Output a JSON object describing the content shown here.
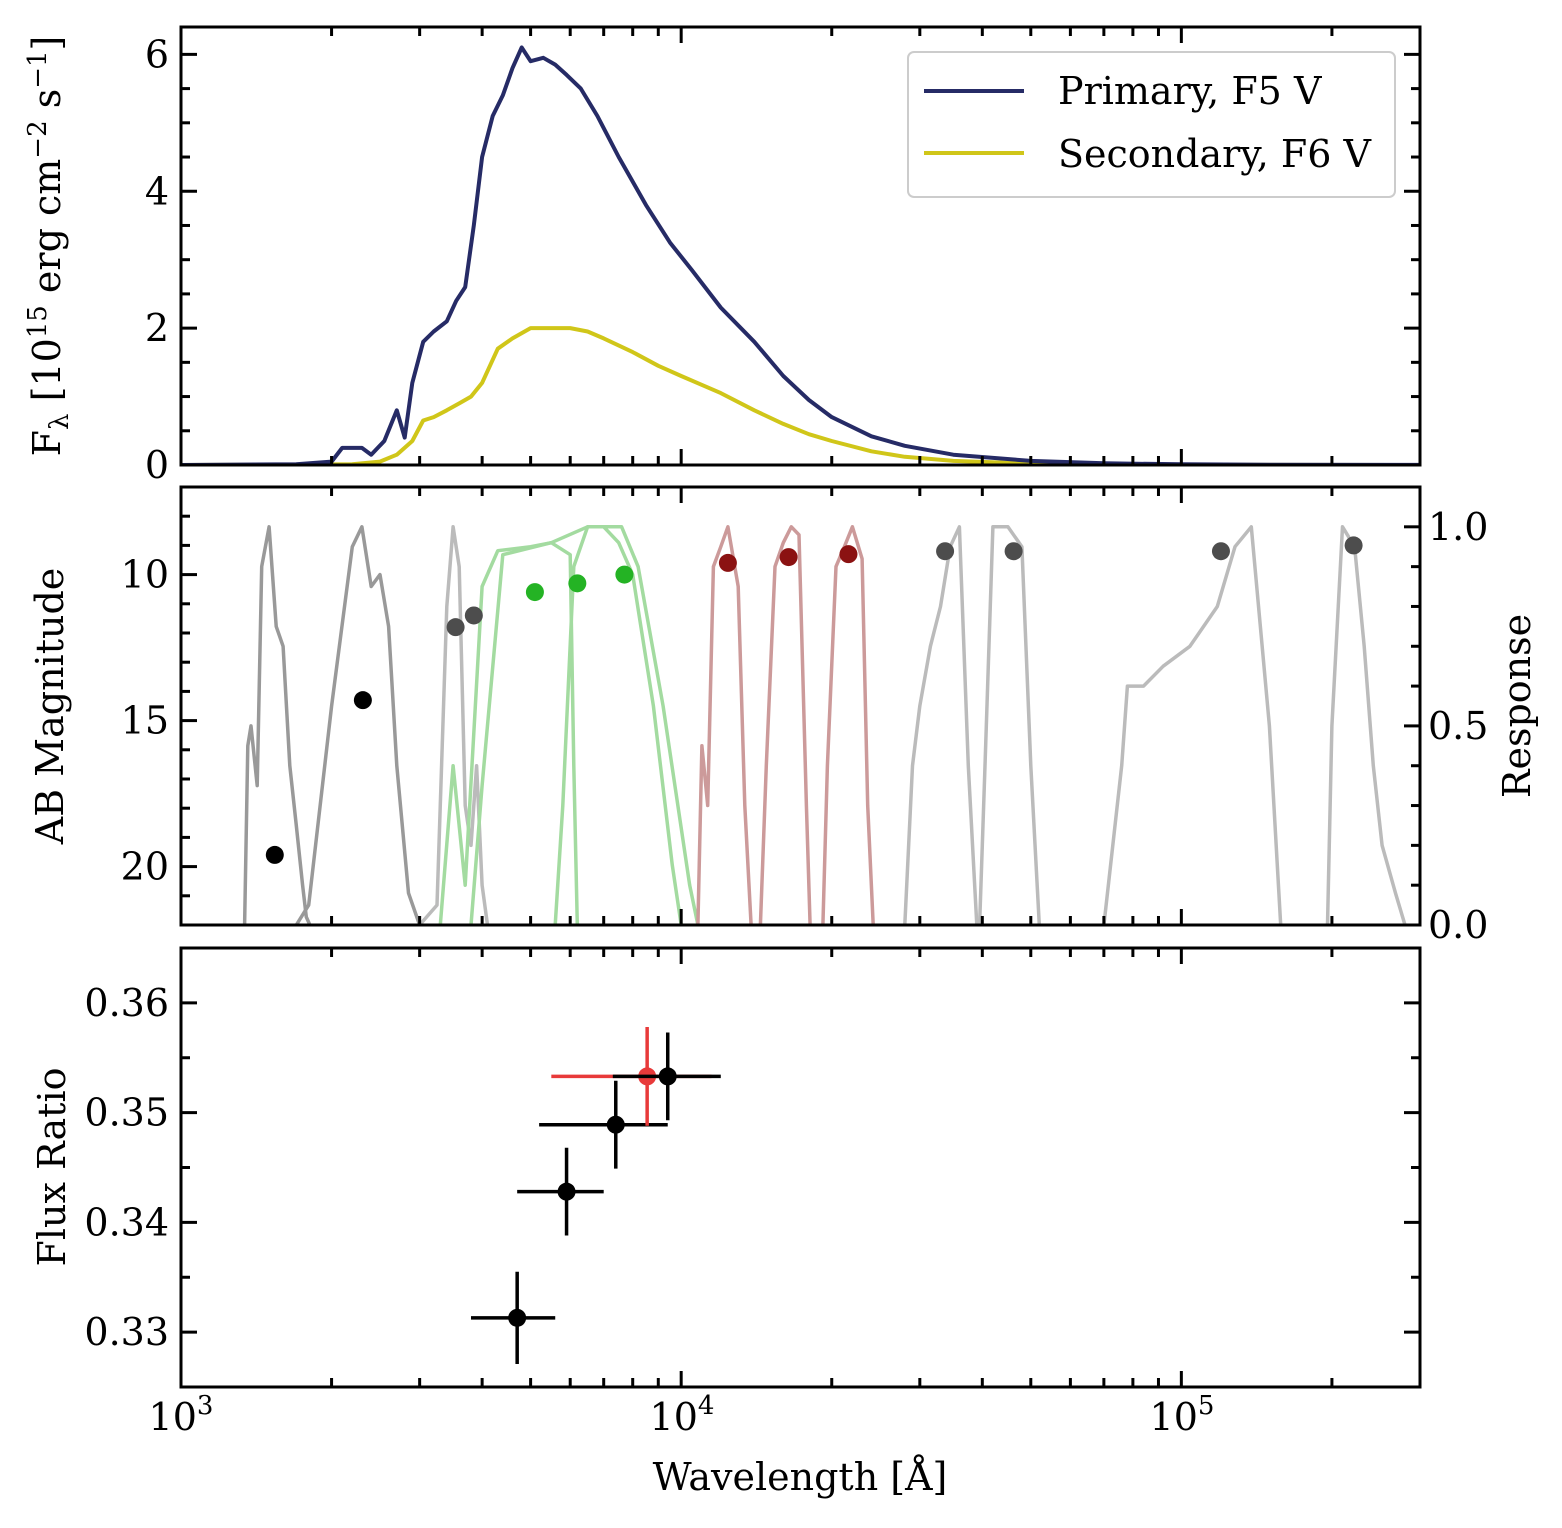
{
  "figure": {
    "xlabel": "Wavelength [Å]",
    "x_tick_labels": [
      "10^3",
      "10^4",
      "10^5"
    ]
  },
  "colors": {
    "primary": "#262b66",
    "secondary": "#d0c619",
    "uv_filter": "#999999",
    "optical_gray_filter": "#bbbbbb",
    "green_filter": "#a3dba0",
    "red_filter": "#cc9a9a",
    "ir_filter": "#bbbbbb",
    "black_point": "#000000",
    "gray_point": "#4d4d4d",
    "green_point": "#24b324",
    "darkred_point": "#8b1212",
    "red_point": "#e83a3a"
  },
  "chart_data": [
    {
      "panel": "top",
      "type": "line",
      "ylabel": "F_λ [10^15 erg cm^-2 s^-1]",
      "ylim": [
        0,
        6.4
      ],
      "y_ticks": [
        0,
        2,
        4,
        6
      ],
      "xscale": "log",
      "xlim": [
        1000,
        300000
      ],
      "legend": {
        "position": "top-right",
        "entries": [
          "Primary, F5 V",
          "Secondary, F6 V"
        ]
      },
      "series": [
        {
          "name": "Primary, F5 V",
          "x": [
            1000,
            1700,
            2000,
            2100,
            2300,
            2400,
            2550,
            2700,
            2800,
            2900,
            3050,
            3200,
            3400,
            3550,
            3700,
            3850,
            4000,
            4200,
            4400,
            4600,
            4800,
            5000,
            5300,
            5600,
            5900,
            6300,
            6800,
            7500,
            8500,
            9500,
            10500,
            12000,
            14000,
            16000,
            18000,
            20000,
            24000,
            28000,
            35000,
            50000,
            70000,
            100000,
            150000,
            300000
          ],
          "y": [
            0,
            0.01,
            0.05,
            0.25,
            0.25,
            0.15,
            0.35,
            0.8,
            0.4,
            1.2,
            1.8,
            1.95,
            2.1,
            2.4,
            2.6,
            3.5,
            4.5,
            5.1,
            5.4,
            5.8,
            6.1,
            5.9,
            5.95,
            5.85,
            5.7,
            5.5,
            5.1,
            4.5,
            3.8,
            3.25,
            2.85,
            2.3,
            1.8,
            1.3,
            0.95,
            0.7,
            0.42,
            0.28,
            0.15,
            0.06,
            0.025,
            0.01,
            0.004,
            0.001
          ]
        },
        {
          "name": "Secondary, F6 V",
          "x": [
            1000,
            2200,
            2500,
            2700,
            2900,
            3050,
            3200,
            3400,
            3600,
            3800,
            4000,
            4300,
            4600,
            5000,
            5500,
            6000,
            6500,
            7000,
            8000,
            9000,
            10000,
            12000,
            14000,
            16000,
            18000,
            20000,
            24000,
            28000,
            35000,
            50000,
            70000,
            100000,
            150000,
            300000
          ],
          "y": [
            0,
            0.01,
            0.05,
            0.15,
            0.35,
            0.65,
            0.7,
            0.8,
            0.9,
            1.0,
            1.2,
            1.7,
            1.85,
            2.0,
            2.0,
            2.0,
            1.95,
            1.85,
            1.65,
            1.45,
            1.3,
            1.05,
            0.8,
            0.6,
            0.45,
            0.35,
            0.2,
            0.12,
            0.06,
            0.02,
            0.008,
            0.003,
            0.001,
            0
          ]
        }
      ]
    },
    {
      "panel": "middle",
      "type": "scatter",
      "ylabel": "AB Magnitude",
      "ylim": [
        22,
        7
      ],
      "y_ticks": [
        10,
        15,
        20
      ],
      "secondary_ylabel": "Response",
      "secondary_ylim": [
        0,
        1.1
      ],
      "secondary_y_ticks": [
        "0.0",
        "0.5",
        "1.0"
      ],
      "xscale": "log",
      "xlim": [
        1000,
        300000
      ],
      "points": [
        {
          "x": 1540,
          "y": 19.6,
          "color": "black"
        },
        {
          "x": 2310,
          "y": 14.3,
          "color": "black"
        },
        {
          "x": 3540,
          "y": 11.8,
          "color": "gray"
        },
        {
          "x": 3850,
          "y": 11.4,
          "color": "gray"
        },
        {
          "x": 5100,
          "y": 10.6,
          "color": "green"
        },
        {
          "x": 6200,
          "y": 10.3,
          "color": "green"
        },
        {
          "x": 7700,
          "y": 10.0,
          "color": "green"
        },
        {
          "x": 12400,
          "y": 9.6,
          "color": "darkred"
        },
        {
          "x": 16400,
          "y": 9.4,
          "color": "darkred"
        },
        {
          "x": 21600,
          "y": 9.3,
          "color": "darkred"
        },
        {
          "x": 33700,
          "y": 9.2,
          "color": "gray"
        },
        {
          "x": 46200,
          "y": 9.2,
          "color": "gray"
        },
        {
          "x": 120000,
          "y": 9.2,
          "color": "gray"
        },
        {
          "x": 221000,
          "y": 9.0,
          "color": "gray"
        }
      ],
      "filter_curves": [
        {
          "group": "uv_filter",
          "x": [
            1340,
            1360,
            1380,
            1420,
            1450,
            1500,
            1550,
            1600,
            1650,
            1700,
            1750,
            1780,
            1810
          ],
          "y": [
            0,
            0.45,
            0.5,
            0.35,
            0.9,
            1.0,
            0.75,
            0.7,
            0.4,
            0.25,
            0.1,
            0.02,
            0
          ]
        },
        {
          "group": "uv_filter",
          "x": [
            1700,
            1800,
            2000,
            2200,
            2300,
            2400,
            2500,
            2600,
            2700,
            2850,
            3000
          ],
          "y": [
            0,
            0.05,
            0.55,
            0.95,
            1.0,
            0.85,
            0.88,
            0.75,
            0.4,
            0.08,
            0
          ]
        },
        {
          "group": "optical_gray_filter",
          "x": [
            3000,
            3250,
            3400,
            3500,
            3600,
            3700,
            3800,
            3900,
            4000,
            4100
          ],
          "y": [
            0,
            0.05,
            0.8,
            1.0,
            0.9,
            0.3,
            0.2,
            0.4,
            0.1,
            0
          ]
        },
        {
          "group": "green_filter",
          "x": [
            3300,
            3500,
            3700,
            4000,
            4300,
            5000,
            5500,
            6000,
            6100,
            6200
          ],
          "y": [
            0,
            0.4,
            0.1,
            0.85,
            0.94,
            0.95,
            0.96,
            0.93,
            0.4,
            0
          ]
        },
        {
          "group": "green_filter",
          "x": [
            5600,
            5800,
            6100,
            6500,
            7000,
            7500,
            8000,
            8800,
            9600,
            10000
          ],
          "y": [
            0,
            0.3,
            0.9,
            1.0,
            1.0,
            0.96,
            0.88,
            0.55,
            0.15,
            0
          ]
        },
        {
          "group": "green_filter",
          "x": [
            3800,
            4000,
            4400,
            5500,
            6500,
            7600,
            8200,
            9200,
            10400,
            10800
          ],
          "y": [
            0,
            0.35,
            0.93,
            0.96,
            1.0,
            1.0,
            0.9,
            0.55,
            0.1,
            0
          ]
        },
        {
          "group": "red_filter",
          "x": [
            10800,
            11000,
            11300,
            11600,
            12000,
            12400,
            13000,
            13400,
            13800
          ],
          "y": [
            0,
            0.45,
            0.3,
            0.9,
            0.95,
            1.0,
            0.85,
            0.3,
            0
          ]
        },
        {
          "group": "red_filter",
          "x": [
            14400,
            14800,
            15400,
            16000,
            16600,
            17200,
            17800,
            18100
          ],
          "y": [
            0,
            0.4,
            0.9,
            0.96,
            1.0,
            0.98,
            0.3,
            0
          ]
        },
        {
          "group": "red_filter",
          "x": [
            19200,
            19600,
            20400,
            21200,
            22000,
            23000,
            23600,
            24200
          ],
          "y": [
            0,
            0.4,
            0.9,
            0.95,
            1.0,
            0.92,
            0.3,
            0
          ]
        },
        {
          "group": "ir_filter",
          "x": [
            28000,
            29000,
            30000,
            31500,
            33000,
            34500,
            36000,
            37500,
            39000
          ],
          "y": [
            0,
            0.4,
            0.55,
            0.7,
            0.8,
            0.95,
            1.0,
            0.4,
            0
          ]
        },
        {
          "group": "ir_filter",
          "x": [
            39500,
            40500,
            42000,
            45000,
            48000,
            50000,
            52000
          ],
          "y": [
            0,
            0.4,
            1.0,
            1.0,
            0.95,
            0.4,
            0
          ]
        },
        {
          "group": "ir_filter",
          "x": [
            70000,
            76000,
            78000,
            84000,
            92000,
            104000,
            118000,
            128000,
            138000,
            150000,
            158000
          ],
          "y": [
            0,
            0.4,
            0.6,
            0.6,
            0.65,
            0.7,
            0.8,
            0.95,
            1.0,
            0.5,
            0
          ]
        },
        {
          "group": "ir_filter",
          "x": [
            196000,
            200000,
            210000,
            222000,
            232000,
            242000,
            252000,
            268000,
            280000
          ],
          "y": [
            0,
            0.5,
            1.0,
            0.95,
            0.7,
            0.4,
            0.2,
            0.08,
            0
          ]
        }
      ]
    },
    {
      "panel": "bottom",
      "type": "scatter",
      "ylabel": "Flux Ratio",
      "ylim": [
        0.325,
        0.365
      ],
      "y_ticks": [
        "0.33",
        "0.34",
        "0.35",
        "0.36"
      ],
      "xscale": "log",
      "xlim": [
        1000,
        300000
      ],
      "points": [
        {
          "x": 4700,
          "y": 0.3313,
          "xerr": [
            3800,
            5600
          ],
          "yerr": 0.0042,
          "color": "black"
        },
        {
          "x": 5900,
          "y": 0.3428,
          "xerr": [
            4700,
            7000
          ],
          "yerr": 0.004,
          "color": "black"
        },
        {
          "x": 7400,
          "y": 0.3489,
          "xerr": [
            5200,
            9400
          ],
          "yerr": 0.004,
          "color": "black"
        },
        {
          "x": 8550,
          "y": 0.3533,
          "xerr": [
            5500,
            11500
          ],
          "yerr": 0.0045,
          "color": "red"
        },
        {
          "x": 9400,
          "y": 0.3533,
          "xerr": [
            7300,
            12000
          ],
          "yerr": 0.004,
          "color": "black"
        }
      ]
    }
  ]
}
